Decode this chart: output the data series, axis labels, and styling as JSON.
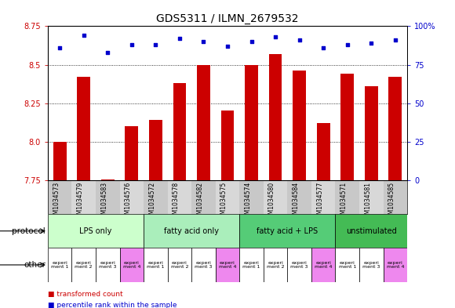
{
  "title": "GDS5311 / ILMN_2679532",
  "samples": [
    "GSM1034573",
    "GSM1034579",
    "GSM1034583",
    "GSM1034576",
    "GSM1034572",
    "GSM1034578",
    "GSM1034582",
    "GSM1034575",
    "GSM1034574",
    "GSM1034580",
    "GSM1034584",
    "GSM1034577",
    "GSM1034571",
    "GSM1034581",
    "GSM1034585"
  ],
  "bar_values": [
    8.0,
    8.42,
    7.755,
    8.1,
    8.14,
    8.38,
    8.5,
    8.2,
    8.5,
    8.57,
    8.46,
    8.12,
    8.44,
    8.36,
    8.42
  ],
  "dot_values": [
    86,
    94,
    83,
    88,
    88,
    92,
    90,
    87,
    90,
    93,
    91,
    86,
    88,
    89,
    91
  ],
  "ylim_left": [
    7.75,
    8.75
  ],
  "ylim_right": [
    0,
    100
  ],
  "yticks_left": [
    7.75,
    8.0,
    8.25,
    8.5,
    8.75
  ],
  "yticks_right": [
    0,
    25,
    50,
    75,
    100
  ],
  "bar_color": "#cc0000",
  "dot_color": "#0000cc",
  "protocols": [
    {
      "label": "LPS only",
      "start": 0,
      "end": 4,
      "color": "#ccffcc"
    },
    {
      "label": "fatty acid only",
      "start": 4,
      "end": 8,
      "color": "#aaeebb"
    },
    {
      "label": "fatty acid + LPS",
      "start": 8,
      "end": 12,
      "color": "#55cc77"
    },
    {
      "label": "unstimulated",
      "start": 12,
      "end": 15,
      "color": "#44bb55"
    }
  ],
  "experiments": [
    "experi\nment 1",
    "experi\nment 2",
    "experi\nment 3",
    "experi\nment 4",
    "experi\nment 1",
    "experi\nment 2",
    "experi\nment 3",
    "experi\nment 4",
    "experi\nment 1",
    "experi\nment 2",
    "experi\nment 3",
    "experi\nment 4",
    "experi\nment 1",
    "experi\nment 3",
    "experi\nment 4"
  ],
  "exp_colors": [
    "#ffffff",
    "#ffffff",
    "#ffffff",
    "#ee88ee",
    "#ffffff",
    "#ffffff",
    "#ffffff",
    "#ee88ee",
    "#ffffff",
    "#ffffff",
    "#ffffff",
    "#ee88ee",
    "#ffffff",
    "#ffffff",
    "#ee88ee"
  ],
  "protocol_label": "protocol",
  "other_label": "other",
  "legend_bar": "transformed count",
  "legend_dot": "percentile rank within the sample",
  "title_fontsize": 10,
  "tick_fontsize": 7,
  "sample_fontsize": 5.5,
  "label_area_color": "#c8c8c8"
}
